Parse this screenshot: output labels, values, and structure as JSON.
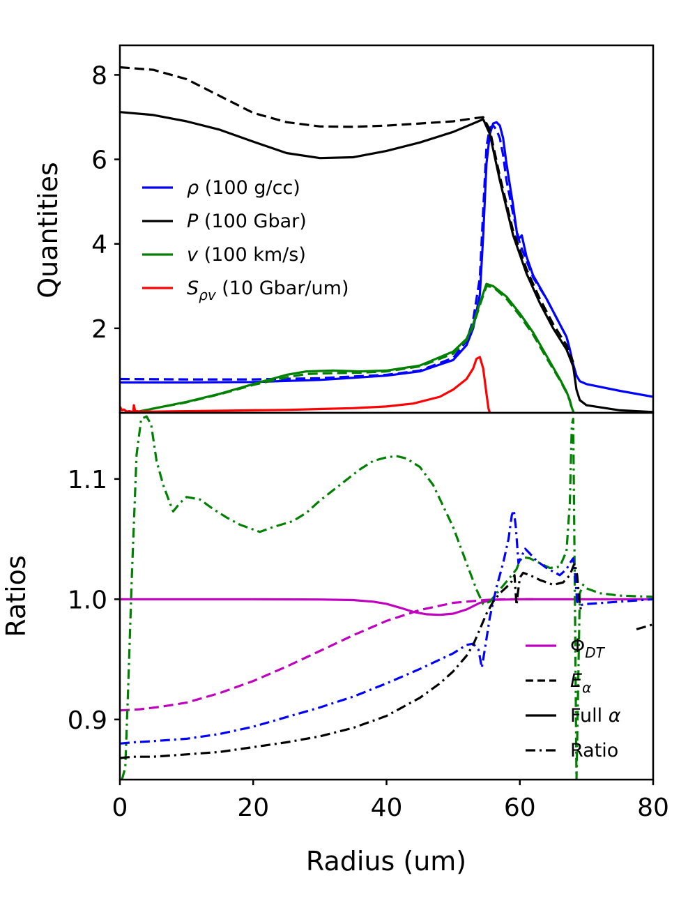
{
  "chart_data": [
    {
      "type": "line",
      "panel": "top",
      "ylabel": "Quantities",
      "xlim": [
        0,
        80
      ],
      "ylim": [
        0,
        8.7
      ],
      "yticks": [
        2,
        4,
        6,
        8
      ],
      "yticklabels": [
        "2",
        "4",
        "6",
        "8"
      ],
      "legend_position": "center-left",
      "legend": [
        {
          "label_main": "ρ",
          "label_sub": "",
          "label_rest": " (100 g/cc)",
          "color": "#0000ff",
          "style": "solid"
        },
        {
          "label_main": "P",
          "label_sub": "",
          "label_rest": " (100 Gbar)",
          "color": "#000000",
          "style": "solid"
        },
        {
          "label_main": "v",
          "label_sub": "",
          "label_rest": " (100 km/s)",
          "color": "#008000",
          "style": "solid"
        },
        {
          "label_main": "S",
          "label_sub": "ρv",
          "label_rest": " (10 Gbar/um)",
          "color": "#ff0000",
          "style": "solid"
        }
      ],
      "series": [
        {
          "name": "rho full alpha",
          "color": "#0000ff",
          "style": "solid",
          "x": [
            0,
            10,
            20,
            30,
            40,
            45,
            50,
            52,
            53,
            54,
            54.5,
            55,
            55.5,
            56,
            56.5,
            57,
            57.5,
            58,
            59,
            59.7,
            60.3,
            61,
            62,
            64,
            66,
            67,
            67.5,
            68,
            68.5,
            69,
            70,
            75,
            80
          ],
          "y": [
            0.72,
            0.72,
            0.73,
            0.78,
            0.88,
            0.98,
            1.25,
            1.6,
            2.0,
            2.8,
            4.2,
            5.9,
            6.6,
            6.85,
            6.88,
            6.8,
            6.5,
            5.9,
            4.9,
            4.1,
            4.2,
            3.7,
            3.25,
            2.7,
            2.1,
            1.8,
            1.5,
            1.15,
            0.88,
            0.75,
            0.68,
            0.52,
            0.38
          ]
        },
        {
          "name": "rho E alpha",
          "color": "#0000ff",
          "style": "dashed",
          "x": [
            0,
            10,
            20,
            30,
            40,
            45,
            50,
            52,
            53,
            54,
            54.5,
            55,
            55.5,
            56,
            56.5,
            57,
            57.5,
            58,
            59,
            60,
            61,
            62,
            64,
            66,
            67,
            67.5,
            68
          ],
          "y": [
            0.8,
            0.79,
            0.79,
            0.82,
            0.9,
            1.0,
            1.3,
            1.7,
            2.2,
            3.2,
            4.8,
            6.3,
            6.75,
            6.8,
            6.7,
            6.5,
            6.1,
            5.5,
            4.7,
            4.0,
            3.6,
            3.2,
            2.7,
            2.1,
            1.8,
            1.5,
            1.1
          ]
        },
        {
          "name": "P full alpha",
          "color": "#000000",
          "style": "solid",
          "x": [
            0,
            5,
            10,
            15,
            20,
            25,
            30,
            35,
            40,
            45,
            50,
            53,
            54.5,
            55.5,
            57,
            59,
            61,
            63,
            65,
            67,
            68,
            68.5,
            69,
            70,
            75,
            80
          ],
          "y": [
            7.12,
            7.05,
            6.9,
            6.7,
            6.42,
            6.15,
            6.03,
            6.05,
            6.2,
            6.4,
            6.65,
            6.85,
            6.95,
            6.6,
            5.5,
            4.2,
            3.3,
            2.6,
            2.0,
            1.5,
            1.1,
            0.55,
            0.3,
            0.18,
            0.06,
            0.02
          ]
        },
        {
          "name": "P E alpha",
          "color": "#000000",
          "style": "dashed",
          "x": [
            0,
            5,
            10,
            15,
            20,
            25,
            30,
            35,
            40,
            45,
            50,
            53,
            54.5,
            55.5,
            57,
            59,
            61,
            63,
            65,
            67,
            68
          ],
          "y": [
            8.18,
            8.12,
            7.9,
            7.5,
            7.1,
            6.88,
            6.78,
            6.77,
            6.8,
            6.85,
            6.9,
            6.97,
            7.0,
            6.7,
            5.6,
            4.3,
            3.4,
            2.7,
            2.1,
            1.6,
            1.2
          ]
        },
        {
          "name": "v full alpha",
          "color": "#008000",
          "style": "solid",
          "x": [
            2.5,
            5,
            10,
            15,
            20,
            25,
            28,
            32,
            36,
            40,
            45,
            50,
            52,
            53,
            54,
            55,
            56,
            58,
            60,
            62,
            64,
            66,
            67,
            67.5,
            67.8,
            68,
            68.1
          ],
          "y": [
            0.02,
            0.1,
            0.26,
            0.45,
            0.68,
            0.9,
            0.98,
            1.0,
            0.98,
            1.0,
            1.12,
            1.45,
            1.75,
            2.1,
            2.6,
            3.05,
            3.0,
            2.75,
            2.35,
            1.9,
            1.35,
            0.8,
            0.5,
            0.3,
            0.12,
            0.04,
            0.0
          ]
        },
        {
          "name": "v E alpha",
          "color": "#008000",
          "style": "dashed",
          "x": [
            2.5,
            5,
            10,
            15,
            20,
            25,
            28,
            32,
            36,
            40,
            45,
            50,
            52,
            53,
            54,
            55,
            56,
            58,
            60,
            62,
            64,
            66,
            67,
            67.5,
            67.8,
            68
          ],
          "y": [
            0.02,
            0.1,
            0.25,
            0.44,
            0.66,
            0.84,
            0.92,
            0.94,
            0.95,
            0.98,
            1.1,
            1.4,
            1.72,
            2.05,
            2.55,
            3.0,
            2.98,
            2.7,
            2.3,
            1.85,
            1.3,
            0.78,
            0.48,
            0.28,
            0.1,
            0.0
          ]
        },
        {
          "name": "S_rho_v",
          "color": "#ff0000",
          "style": "solid",
          "x": [
            0,
            0.3,
            0.6,
            1.0,
            1.4,
            2.0,
            2.1,
            2.3,
            2.6,
            3,
            5,
            10,
            15,
            20,
            25,
            30,
            35,
            40,
            44,
            48,
            50,
            52,
            53,
            53.5,
            54,
            54.5,
            55,
            55.3,
            55.5
          ],
          "y": [
            0.15,
            0.06,
            0.08,
            0.03,
            0.04,
            0.02,
            0.18,
            0.03,
            0.04,
            0.03,
            0.03,
            0.04,
            0.05,
            0.06,
            0.07,
            0.09,
            0.11,
            0.15,
            0.22,
            0.38,
            0.55,
            0.8,
            1.05,
            1.28,
            1.32,
            1.05,
            0.45,
            0.1,
            0.0
          ]
        }
      ]
    },
    {
      "type": "line",
      "panel": "bottom",
      "ylabel": "Ratios",
      "xlabel": "Radius (um)",
      "xlim": [
        0,
        80
      ],
      "ylim": [
        0.85,
        1.155
      ],
      "xticks": [
        0,
        20,
        40,
        60,
        80
      ],
      "xticklabels": [
        "0",
        "20",
        "40",
        "60",
        "80"
      ],
      "yticks": [
        0.9,
        1.0,
        1.1
      ],
      "yticklabels": [
        "0.9",
        "1.0",
        "1.1"
      ],
      "legend_position": "lower-right",
      "legend": [
        {
          "label_main": "Φ",
          "label_sub": "DT",
          "label_rest": "",
          "color": "#bf00bf",
          "style": "solid"
        },
        {
          "label_main": "E",
          "label_sub": "α",
          "label_rest": "",
          "color": "#000000",
          "style": "dashed"
        },
        {
          "label_main": "Full ",
          "label_sub": "",
          "label_rest": "α",
          "color": "#000000",
          "style": "solid"
        },
        {
          "label_main": "Ratio",
          "label_sub": "",
          "label_rest": "",
          "color": "#000000",
          "style": "dashdot"
        }
      ],
      "series": [
        {
          "name": "Phi_DT full alpha",
          "color": "#bf00bf",
          "style": "solid",
          "x": [
            0,
            10,
            20,
            30,
            35,
            38,
            40,
            42,
            44,
            46,
            48,
            50,
            52,
            54,
            56,
            60,
            70,
            80
          ],
          "y": [
            1.0,
            1.0,
            1.0,
            0.9998,
            0.9993,
            0.998,
            0.9962,
            0.993,
            0.9895,
            0.9875,
            0.987,
            0.988,
            0.9915,
            0.997,
            0.9995,
            1.0,
            1.0,
            1.0
          ]
        },
        {
          "name": "Phi_DT E alpha",
          "color": "#bf00bf",
          "style": "dashed",
          "x": [
            0,
            3,
            6,
            10,
            15,
            20,
            25,
            30,
            35,
            40,
            45,
            50,
            55,
            58,
            62
          ],
          "y": [
            0.9075,
            0.9085,
            0.9105,
            0.914,
            0.922,
            0.932,
            0.944,
            0.957,
            0.97,
            0.982,
            0.991,
            0.997,
            0.9995,
            1.0,
            1.0
          ]
        },
        {
          "name": "Ratio v",
          "color": "#008000",
          "style": "dashdot",
          "x": [
            0.3,
            0.8,
            1.2,
            1.8,
            2.5,
            3.2,
            4,
            4.7,
            5.5,
            6.5,
            7.5,
            8,
            9,
            10,
            12,
            14,
            16,
            18,
            20,
            21,
            23,
            26,
            28,
            30,
            33,
            36,
            38,
            40,
            41.5,
            43,
            45,
            47,
            50,
            52,
            53.5,
            54.5,
            55.5,
            57,
            58.5,
            59.5,
            60,
            60.5,
            61.5,
            63,
            64.5,
            66,
            67,
            67.5,
            67.8,
            68,
            68.3,
            68.5,
            69,
            69.5,
            70,
            72,
            75,
            80
          ],
          "y": [
            0.85,
            0.86,
            0.92,
            1.02,
            1.12,
            1.15,
            1.152,
            1.145,
            1.115,
            1.095,
            1.08,
            1.073,
            1.08,
            1.085,
            1.083,
            1.075,
            1.068,
            1.062,
            1.058,
            1.056,
            1.06,
            1.065,
            1.072,
            1.082,
            1.095,
            1.108,
            1.115,
            1.118,
            1.119,
            1.117,
            1.11,
            1.095,
            1.06,
            1.03,
            1.008,
            0.996,
            0.998,
            1.008,
            1.018,
            1.025,
            1.032,
            1.035,
            1.034,
            1.03,
            1.026,
            1.027,
            1.04,
            1.08,
            1.145,
            1.15,
            0.98,
            0.85,
            1.005,
            1.012,
            1.009,
            1.005,
            1.003,
            1.002
          ]
        },
        {
          "name": "Ratio rho",
          "color": "#0000ff",
          "style": "dashdot",
          "x": [
            0,
            2,
            5,
            10,
            15,
            20,
            25,
            30,
            35,
            40,
            45,
            50,
            52,
            53,
            53.8,
            54.3,
            54.8,
            55.5,
            56.5,
            57.5,
            58.3,
            58.8,
            59.1,
            59.4,
            59.8,
            60.2,
            60.8,
            61.5,
            62.5,
            64,
            66,
            67,
            67.5,
            68,
            68.3,
            68.6,
            69,
            70,
            75,
            80
          ],
          "y": [
            0.88,
            0.881,
            0.882,
            0.884,
            0.888,
            0.894,
            0.902,
            0.91,
            0.919,
            0.93,
            0.942,
            0.955,
            0.962,
            0.963,
            0.958,
            0.943,
            0.96,
            0.985,
            1.01,
            1.03,
            1.05,
            1.07,
            1.074,
            1.06,
            1.03,
            1.035,
            1.042,
            1.038,
            1.032,
            1.026,
            1.02,
            1.025,
            1.03,
            1.034,
            1.02,
            0.998,
            0.995,
            0.996,
            0.998,
            1.0
          ]
        },
        {
          "name": "Ratio P",
          "color": "#000000",
          "style": "dashdot",
          "x": [
            0,
            2,
            5,
            10,
            15,
            20,
            25,
            30,
            35,
            40,
            45,
            48,
            50,
            52,
            53,
            54,
            55,
            56,
            57,
            58,
            58.8,
            59.2,
            59.5,
            59.7,
            60,
            60.5,
            61.5,
            63,
            65,
            66.5,
            67.5,
            68.2,
            68.6,
            68.9,
            69.2
          ],
          "y": [
            0.868,
            0.869,
            0.869,
            0.871,
            0.873,
            0.877,
            0.881,
            0.886,
            0.893,
            0.903,
            0.918,
            0.93,
            0.94,
            0.953,
            0.962,
            0.975,
            0.988,
            0.998,
            1.005,
            1.01,
            1.015,
            1.02,
            0.995,
            1.005,
            1.018,
            1.022,
            1.02,
            1.016,
            1.012,
            1.014,
            1.02,
            1.03,
            1.02,
            1.0,
            0.99
          ]
        },
        {
          "name": "Ratio P tail",
          "color": "#000000",
          "style": "dashdot",
          "x": [
            77.5,
            80
          ],
          "y": [
            0.975,
            0.979
          ]
        }
      ]
    }
  ]
}
